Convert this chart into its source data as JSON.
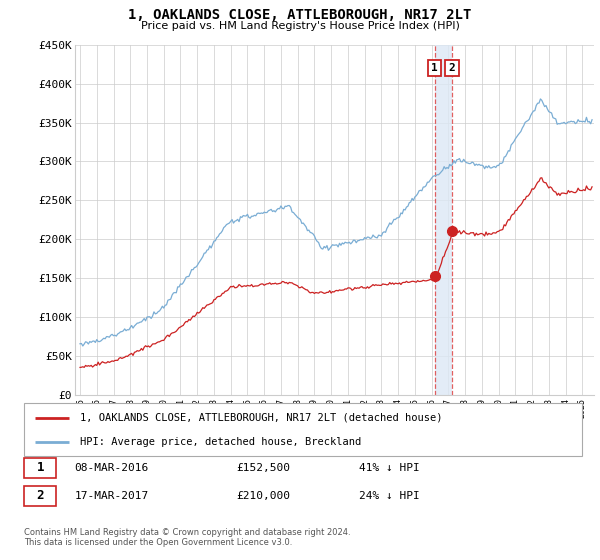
{
  "title": "1, OAKLANDS CLOSE, ATTLEBOROUGH, NR17 2LT",
  "subtitle": "Price paid vs. HM Land Registry's House Price Index (HPI)",
  "ylabel_ticks": [
    "£0",
    "£50K",
    "£100K",
    "£150K",
    "£200K",
    "£250K",
    "£300K",
    "£350K",
    "£400K",
    "£450K"
  ],
  "ytick_vals": [
    0,
    50000,
    100000,
    150000,
    200000,
    250000,
    300000,
    350000,
    400000,
    450000
  ],
  "ylim": [
    0,
    450000
  ],
  "xlim_start": 1994.7,
  "xlim_end": 2025.7,
  "hpi_color": "#7aadd4",
  "price_color": "#cc2222",
  "vline_color": "#dd4444",
  "shade_color": "#dde8f5",
  "purchase1_x": 2016.19,
  "purchase1_y": 152500,
  "purchase2_x": 2017.21,
  "purchase2_y": 210000,
  "legend_house_label": "1, OAKLANDS CLOSE, ATTLEBOROUGH, NR17 2LT (detached house)",
  "legend_hpi_label": "HPI: Average price, detached house, Breckland",
  "table_row1": [
    "1",
    "08-MAR-2016",
    "£152,500",
    "41% ↓ HPI"
  ],
  "table_row2": [
    "2",
    "17-MAR-2017",
    "£210,000",
    "24% ↓ HPI"
  ],
  "footnote": "Contains HM Land Registry data © Crown copyright and database right 2024.\nThis data is licensed under the Open Government Licence v3.0.",
  "background_color": "#ffffff",
  "grid_color": "#cccccc"
}
